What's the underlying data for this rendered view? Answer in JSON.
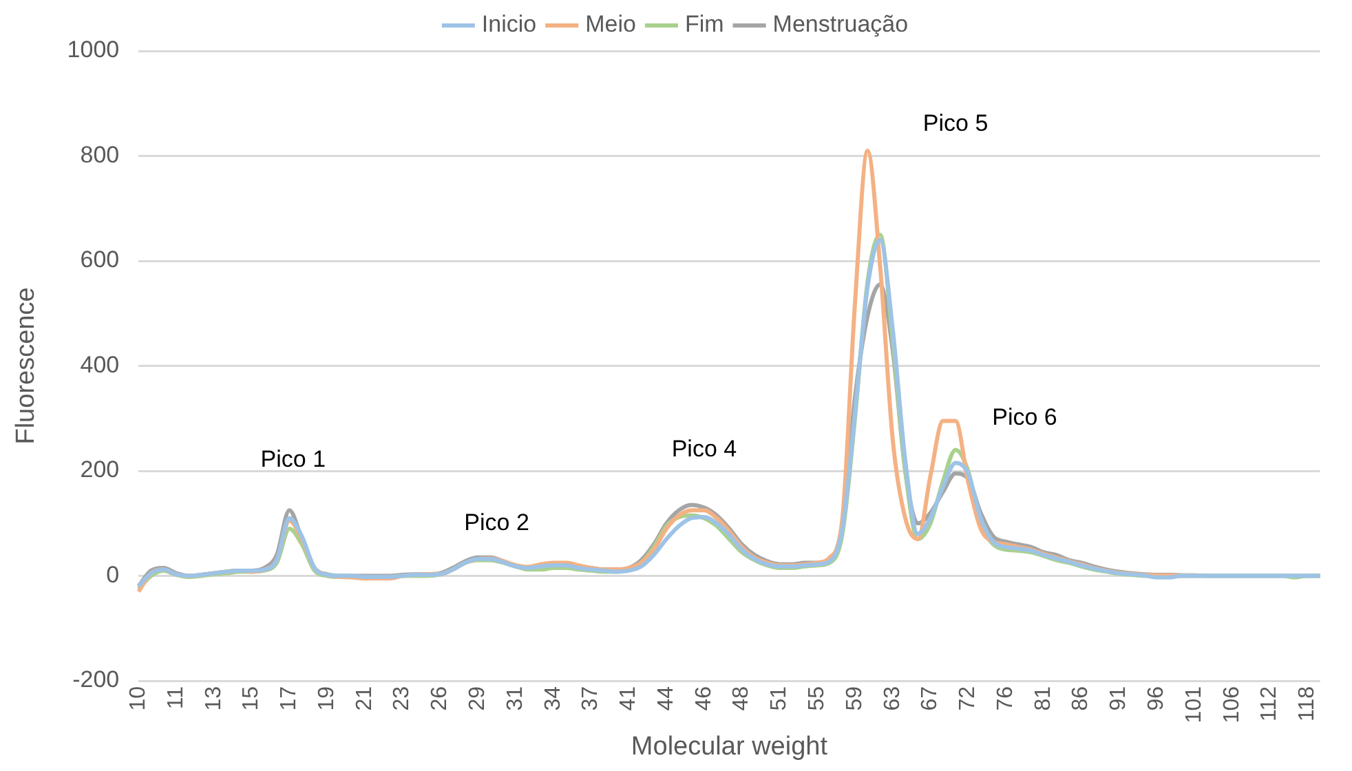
{
  "chart_data": {
    "type": "line",
    "xlabel": "Molecular weight",
    "ylabel": "Fluorescence",
    "categories": [
      "10",
      null,
      null,
      "11",
      null,
      null,
      "13",
      null,
      null,
      "15",
      null,
      null,
      "17",
      null,
      null,
      "19",
      null,
      null,
      "21",
      null,
      null,
      "23",
      null,
      null,
      "26",
      null,
      null,
      "29",
      null,
      null,
      "31",
      null,
      null,
      "34",
      null,
      null,
      "37",
      null,
      null,
      "41",
      null,
      null,
      "44",
      null,
      null,
      "46",
      null,
      null,
      "48",
      null,
      null,
      "51",
      null,
      null,
      "55",
      null,
      null,
      "59",
      null,
      null,
      "63",
      null,
      null,
      "67",
      null,
      null,
      "72",
      null,
      null,
      "76",
      null,
      null,
      "81",
      null,
      null,
      "86",
      null,
      null,
      "91",
      null,
      null,
      "96",
      null,
      null,
      "101",
      null,
      null,
      "106",
      null,
      null,
      "112",
      null,
      null,
      "118",
      null
    ],
    "series": [
      {
        "name": "Inicio",
        "color": "#9dc3e6",
        "values": [
          -20,
          5,
          12,
          3,
          0,
          2,
          5,
          8,
          10,
          10,
          12,
          30,
          110,
          75,
          15,
          2,
          0,
          0,
          -2,
          -2,
          -2,
          0,
          2,
          2,
          3,
          12,
          25,
          32,
          32,
          26,
          18,
          15,
          18,
          20,
          20,
          15,
          12,
          10,
          8,
          10,
          18,
          40,
          70,
          95,
          110,
          112,
          100,
          78,
          50,
          32,
          22,
          18,
          18,
          20,
          22,
          28,
          90,
          310,
          550,
          640,
          470,
          220,
          80,
          110,
          170,
          215,
          195,
          110,
          65,
          55,
          52,
          48,
          40,
          33,
          27,
          20,
          14,
          9,
          5,
          3,
          1,
          -3,
          -3,
          0,
          0,
          0,
          0,
          0,
          0,
          0,
          0,
          0,
          0,
          0,
          0
        ]
      },
      {
        "name": "Meio",
        "color": "#f4b183",
        "values": [
          -30,
          5,
          12,
          3,
          0,
          2,
          5,
          8,
          10,
          8,
          12,
          30,
          105,
          70,
          15,
          2,
          -2,
          -3,
          -5,
          -5,
          -5,
          0,
          2,
          3,
          3,
          12,
          25,
          32,
          33,
          28,
          20,
          17,
          22,
          25,
          25,
          20,
          15,
          12,
          12,
          15,
          25,
          50,
          90,
          115,
          125,
          125,
          110,
          85,
          55,
          35,
          25,
          20,
          20,
          22,
          25,
          35,
          110,
          520,
          810,
          590,
          260,
          110,
          70,
          190,
          295,
          295,
          180,
          90,
          65,
          60,
          55,
          50,
          42,
          35,
          28,
          22,
          15,
          10,
          6,
          4,
          2,
          1,
          1,
          0,
          0,
          null,
          null,
          null,
          null,
          null,
          null,
          null,
          null,
          null,
          null
        ]
      },
      {
        "name": "Fim",
        "color": "#a9d18e",
        "values": [
          -25,
          0,
          10,
          2,
          -2,
          0,
          3,
          5,
          8,
          8,
          10,
          25,
          90,
          60,
          10,
          0,
          -2,
          -2,
          -2,
          -2,
          -2,
          0,
          0,
          0,
          3,
          12,
          25,
          30,
          30,
          25,
          18,
          12,
          12,
          15,
          15,
          12,
          10,
          8,
          8,
          12,
          25,
          55,
          95,
          112,
          115,
          110,
          95,
          70,
          45,
          30,
          20,
          15,
          15,
          18,
          20,
          25,
          80,
          300,
          560,
          650,
          450,
          200,
          70,
          100,
          180,
          240,
          200,
          100,
          60,
          50,
          48,
          45,
          38,
          30,
          25,
          18,
          12,
          8,
          4,
          2,
          0,
          0,
          0,
          0,
          0,
          0,
          0,
          0,
          0,
          0,
          0,
          0,
          -3,
          0,
          0
        ]
      },
      {
        "name": "Menstruação",
        "color": "#a5a5a5",
        "values": [
          -20,
          10,
          15,
          5,
          0,
          2,
          5,
          8,
          10,
          10,
          15,
          40,
          125,
          70,
          15,
          3,
          0,
          0,
          0,
          0,
          0,
          2,
          3,
          3,
          5,
          15,
          28,
          35,
          35,
          28,
          20,
          15,
          18,
          20,
          20,
          18,
          15,
          12,
          12,
          15,
          30,
          60,
          100,
          125,
          135,
          130,
          115,
          90,
          60,
          40,
          28,
          22,
          22,
          25,
          25,
          30,
          100,
          340,
          495,
          555,
          430,
          200,
          100,
          120,
          160,
          195,
          185,
          120,
          75,
          65,
          60,
          55,
          45,
          40,
          30,
          25,
          18,
          12,
          8,
          5,
          3,
          2,
          2,
          1,
          1,
          0,
          0,
          0,
          0,
          0,
          0,
          0,
          0,
          0,
          0
        ]
      }
    ],
    "ylim": [
      -200,
      1000
    ],
    "yticks": [
      -200,
      0,
      200,
      400,
      600,
      800,
      1000
    ],
    "grid": "y",
    "legend": "top",
    "marker": "none",
    "line_style": "solid",
    "annotations": [
      "Pico 1",
      "Pico 2",
      "Pico 4",
      "Pico 5",
      "Pico 6"
    ]
  }
}
